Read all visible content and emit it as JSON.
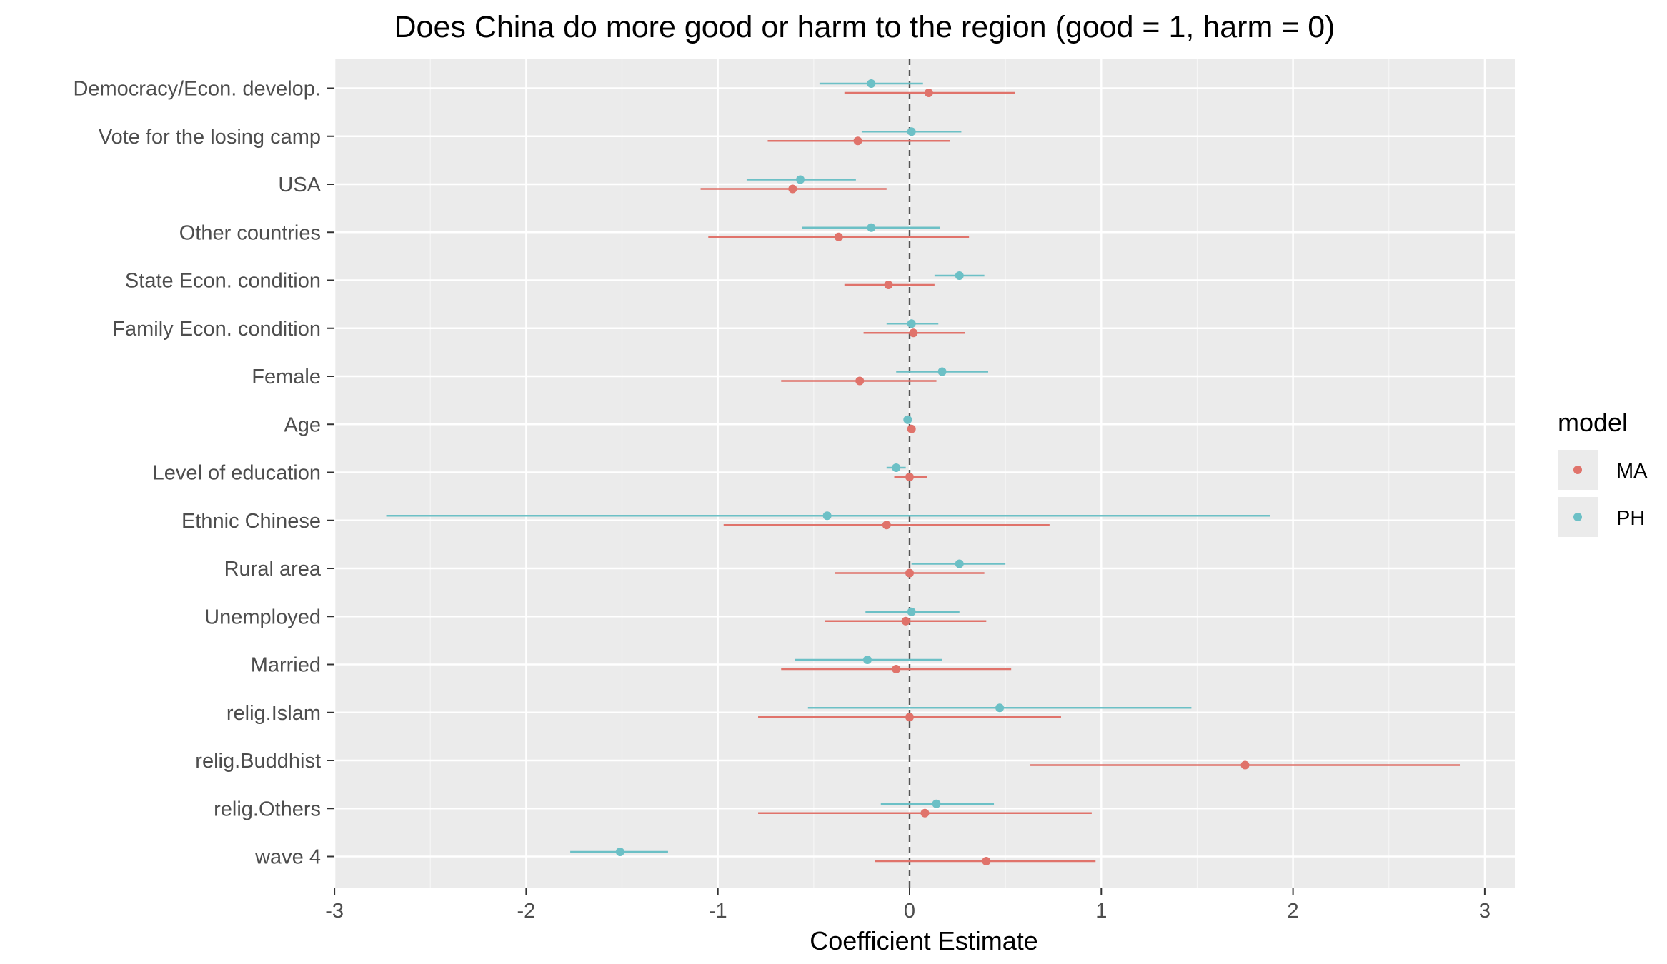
{
  "chart_data": {
    "type": "scatter",
    "subtype": "coefficient-plot",
    "title": "Does China do more good or harm to the region (good = 1, harm = 0)",
    "xlabel": "Coefficient Estimate",
    "ylabel": "",
    "xlim": [
      -3,
      3
    ],
    "x_ticks": [
      -3,
      -2,
      -1,
      0,
      1,
      2,
      3
    ],
    "x_tick_labels": [
      "-3",
      "-2",
      "-1",
      "0",
      "1",
      "2",
      "3"
    ],
    "reference_line": 0,
    "grid": true,
    "legend": {
      "title": "model",
      "placement": "right"
    },
    "categories": [
      "Democracy/Econ. develop.",
      "Vote for the losing camp",
      "USA",
      "Other countries",
      "State Econ. condition",
      "Family Econ. condition",
      "Female",
      "Age",
      "Level of education",
      "Ethnic Chinese",
      "Rural area",
      "Unemployed",
      "Married",
      "relig.Islam",
      "relig.Buddhist",
      "relig.Others",
      "wave 4"
    ],
    "series": [
      {
        "name": "MA",
        "color": "#e0736b",
        "estimates": [
          0.1,
          -0.27,
          -0.61,
          -0.37,
          -0.11,
          0.02,
          -0.26,
          0.01,
          0.0,
          -0.12,
          0.0,
          -0.02,
          -0.07,
          0.0,
          1.75,
          0.08,
          0.4
        ],
        "lower": [
          -0.34,
          -0.74,
          -1.09,
          -1.05,
          -0.34,
          -0.24,
          -0.67,
          0.0,
          -0.08,
          -0.97,
          -0.39,
          -0.44,
          -0.67,
          -0.79,
          0.63,
          -0.79,
          -0.18
        ],
        "upper": [
          0.55,
          0.21,
          -0.12,
          0.31,
          0.13,
          0.29,
          0.14,
          0.01,
          0.09,
          0.73,
          0.39,
          0.4,
          0.53,
          0.79,
          2.87,
          0.95,
          0.97
        ]
      },
      {
        "name": "PH",
        "color": "#6cc0c6",
        "estimates": [
          -0.2,
          0.01,
          -0.57,
          -0.2,
          0.26,
          0.01,
          0.17,
          -0.01,
          -0.07,
          -0.43,
          0.26,
          0.01,
          -0.22,
          0.47,
          null,
          0.14,
          -1.51
        ],
        "lower": [
          -0.47,
          -0.25,
          -0.85,
          -0.56,
          0.13,
          -0.12,
          -0.07,
          -0.01,
          -0.12,
          -2.73,
          0.01,
          -0.23,
          -0.6,
          -0.53,
          null,
          -0.15,
          -1.77
        ],
        "upper": [
          0.07,
          0.27,
          -0.28,
          0.16,
          0.39,
          0.15,
          0.41,
          -0.01,
          -0.02,
          1.88,
          0.5,
          0.26,
          0.17,
          1.47,
          null,
          0.44,
          -1.26
        ]
      }
    ]
  },
  "colors": {
    "panel_background": "#ebebeb",
    "grid_major": "#ffffff",
    "tick_text": "#4d4d4d",
    "reference_line": "#555555"
  }
}
